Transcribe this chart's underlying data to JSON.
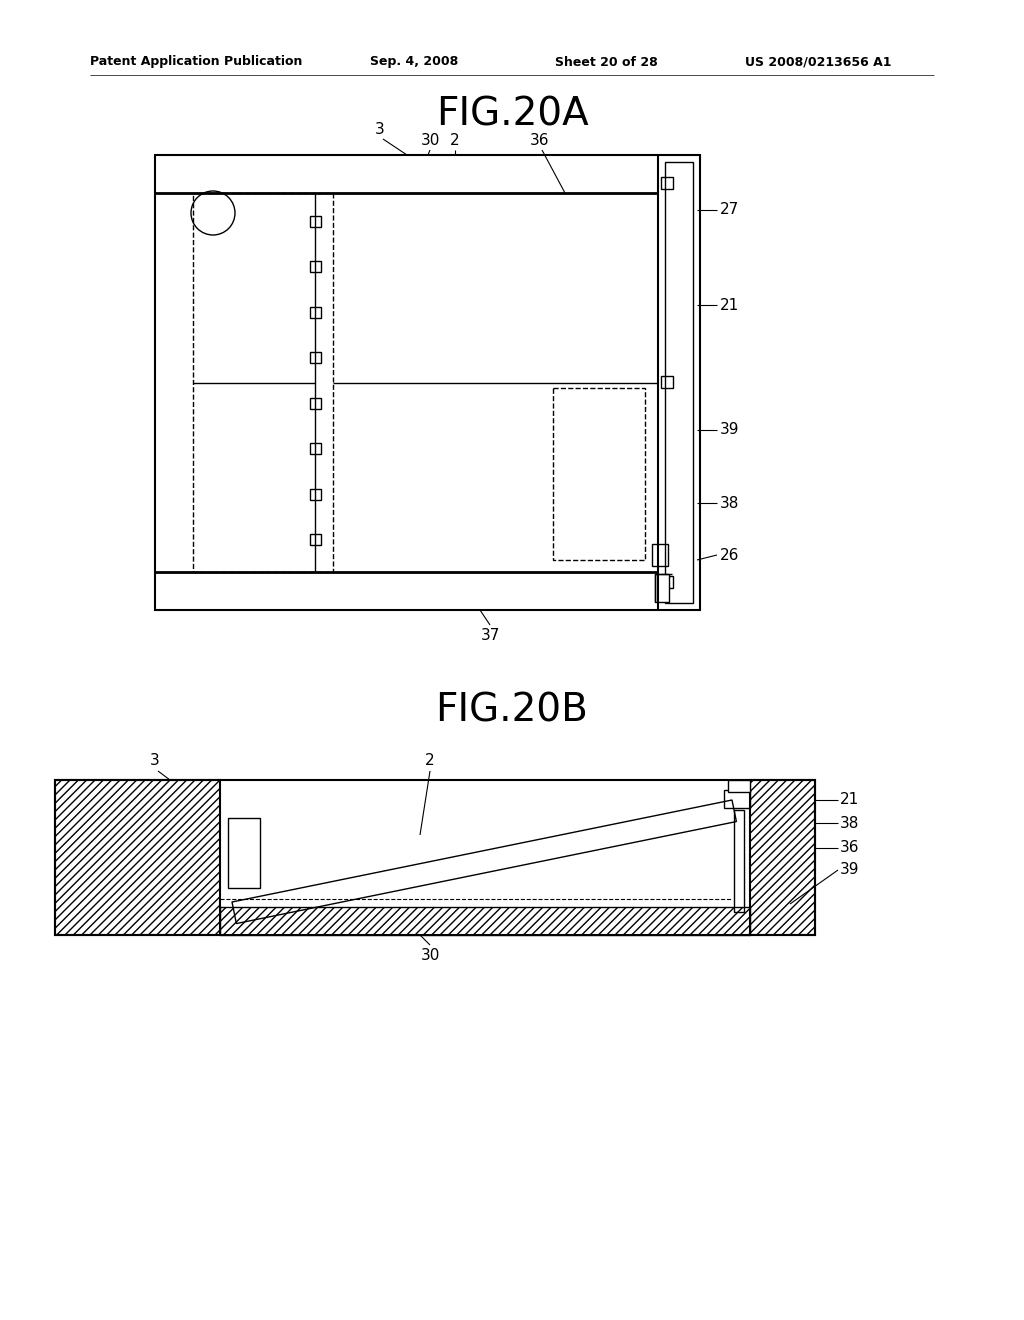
{
  "bg_color": "#ffffff",
  "line_color": "#000000",
  "header_text": "Patent Application Publication",
  "header_date": "Sep. 4, 2008",
  "header_sheet": "Sheet 20 of 28",
  "header_patent": "US 2008/0213656 A1",
  "fig20a_title": "FIG.20A",
  "fig20b_title": "FIG.20B"
}
